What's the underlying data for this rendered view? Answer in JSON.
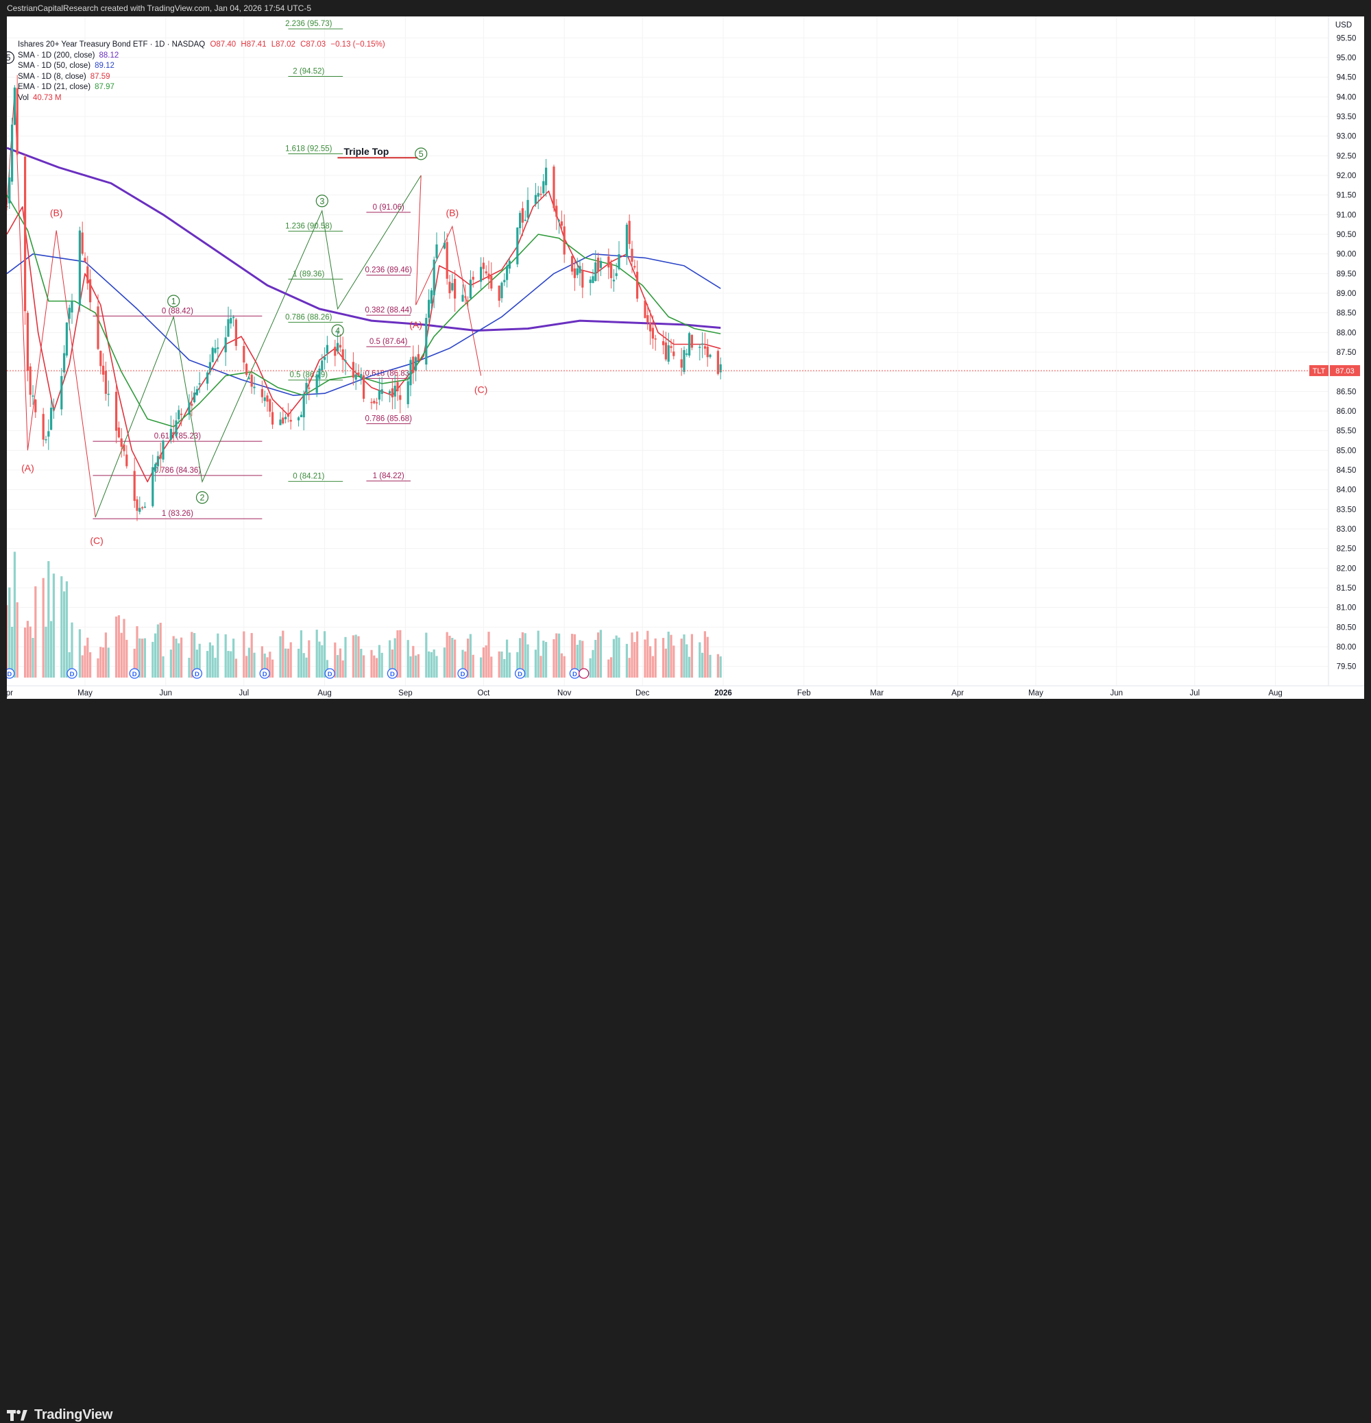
{
  "header": {
    "caption": "CestrianCapitalResearch created with TradingView.com, Jan 04, 2026 17:54 UTC-5"
  },
  "footer": {
    "brand": "TradingView"
  },
  "legend": {
    "symbol": "Ishares 20+ Year Treasury Bond ETF · 1D · NASDAQ",
    "ohlc": {
      "o": "O87.40",
      "h": "H87.41",
      "l": "L87.02",
      "c": "C87.03",
      "chg": "−0.13 (−0.15%)"
    },
    "indicators": [
      {
        "label": "SMA · 1D (200, close)",
        "value": "88.12",
        "color": "#6a2fc0"
      },
      {
        "label": "SMA · 1D (50, close)",
        "value": "89.12",
        "color": "#2b45c8"
      },
      {
        "label": "SMA · 1D (8, close)",
        "value": "87.59",
        "color": "#e0323c"
      },
      {
        "label": "EMA · 1D (21, close)",
        "value": "87.97",
        "color": "#2e9a3a"
      }
    ],
    "volume": {
      "label": "Vol",
      "value": "40.73 M"
    }
  },
  "colors": {
    "up": "#26a69a",
    "down": "#ef5350",
    "vol_up": "#8fd3cb",
    "vol_down": "#f5a3a1",
    "fib_green": "#3a8a3a",
    "fib_magenta": "#a0205a",
    "wave_green": "#2e7d32",
    "wave_red": "#e0323c",
    "sma200": "#6a2fc0",
    "sma50": "#2b45c8",
    "sma8": "#e0323c",
    "ema21": "#2e9a3a"
  },
  "chart_data": {
    "type": "candlestick",
    "title": "Ishares 20+ Year Treasury Bond ETF · 1D · NASDAQ",
    "currency": "USD",
    "ylim": [
      79.25,
      95.75
    ],
    "y_ticks": [
      "95.50",
      "95.00",
      "94.50",
      "94.00",
      "93.50",
      "93.00",
      "92.50",
      "92.00",
      "91.50",
      "91.00",
      "90.50",
      "90.00",
      "89.50",
      "89.00",
      "88.50",
      "88.00",
      "87.50",
      "87.00",
      "86.50",
      "86.00",
      "85.50",
      "85.00",
      "84.50",
      "84.00",
      "83.50",
      "83.00",
      "82.50",
      "82.00",
      "81.50",
      "81.00",
      "80.50",
      "80.00",
      "79.50"
    ],
    "x_ticks": [
      {
        "label": "Apr",
        "day": 0
      },
      {
        "label": "May",
        "day": 30
      },
      {
        "label": "Jun",
        "day": 61
      },
      {
        "label": "Jul",
        "day": 91
      },
      {
        "label": "Aug",
        "day": 122
      },
      {
        "label": "Sep",
        "day": 153
      },
      {
        "label": "Oct",
        "day": 183
      },
      {
        "label": "Nov",
        "day": 214
      },
      {
        "label": "Dec",
        "day": 244
      },
      {
        "label": "2026",
        "day": 275
      },
      {
        "label": "Feb",
        "day": 306
      },
      {
        "label": "Mar",
        "day": 334
      },
      {
        "label": "Apr",
        "day": 365
      },
      {
        "label": "May",
        "day": 395
      },
      {
        "label": "Jun",
        "day": 426
      },
      {
        "label": "Jul",
        "day": 456
      },
      {
        "label": "Aug",
        "day": 487
      }
    ],
    "last_price": {
      "symbol": "TLT",
      "value": "87.03"
    },
    "price_path": [
      [
        0,
        91.2
      ],
      [
        3,
        94.2
      ],
      [
        8,
        87.0
      ],
      [
        14,
        85.0
      ],
      [
        22,
        87.5
      ],
      [
        28,
        90.6
      ],
      [
        34,
        88.0
      ],
      [
        40,
        86.0
      ],
      [
        48,
        84.0
      ],
      [
        52,
        83.3
      ],
      [
        56,
        84.6
      ],
      [
        62,
        85.3
      ],
      [
        70,
        86.2
      ],
      [
        78,
        87.4
      ],
      [
        86,
        88.3
      ],
      [
        90,
        87.6
      ],
      [
        96,
        86.3
      ],
      [
        103,
        85.9
      ],
      [
        110,
        85.5
      ],
      [
        116,
        86.8
      ],
      [
        123,
        87.8
      ],
      [
        130,
        87.4
      ],
      [
        138,
        86.4
      ],
      [
        146,
        86.5
      ],
      [
        152,
        86.6
      ],
      [
        156,
        87.2
      ],
      [
        160,
        87.8
      ],
      [
        166,
        90.8
      ],
      [
        170,
        89.2
      ],
      [
        175,
        88.7
      ],
      [
        180,
        89.5
      ],
      [
        186,
        89.4
      ],
      [
        190,
        89.0
      ],
      [
        196,
        90.6
      ],
      [
        202,
        91.6
      ],
      [
        208,
        92.0
      ],
      [
        212,
        90.9
      ],
      [
        216,
        89.4
      ],
      [
        222,
        89.4
      ],
      [
        228,
        89.8
      ],
      [
        234,
        89.6
      ],
      [
        238,
        90.6
      ],
      [
        242,
        89.1
      ],
      [
        246,
        88.4
      ],
      [
        252,
        87.6
      ],
      [
        258,
        87.3
      ],
      [
        263,
        87.8
      ],
      [
        268,
        87.5
      ],
      [
        272,
        87.4
      ],
      [
        274,
        87.03
      ]
    ],
    "series": [
      {
        "name": "SMA · 1D (200, close)",
        "points": [
          [
            0,
            92.7
          ],
          [
            20,
            92.2
          ],
          [
            40,
            91.8
          ],
          [
            60,
            91.0
          ],
          [
            80,
            90.1
          ],
          [
            100,
            89.2
          ],
          [
            120,
            88.6
          ],
          [
            140,
            88.3
          ],
          [
            160,
            88.2
          ],
          [
            180,
            88.05
          ],
          [
            200,
            88.1
          ],
          [
            210,
            88.2
          ],
          [
            220,
            88.3
          ],
          [
            240,
            88.25
          ],
          [
            260,
            88.2
          ],
          [
            274,
            88.12
          ]
        ]
      },
      {
        "name": "SMA · 1D (50, close)",
        "points": [
          [
            0,
            89.5
          ],
          [
            10,
            90.0
          ],
          [
            30,
            89.8
          ],
          [
            50,
            88.6
          ],
          [
            70,
            87.3
          ],
          [
            90,
            86.8
          ],
          [
            110,
            86.4
          ],
          [
            122,
            86.45
          ],
          [
            140,
            86.9
          ],
          [
            155,
            87.2
          ],
          [
            170,
            87.6
          ],
          [
            190,
            88.4
          ],
          [
            210,
            89.5
          ],
          [
            225,
            90.0
          ],
          [
            245,
            89.9
          ],
          [
            260,
            89.7
          ],
          [
            274,
            89.12
          ]
        ]
      },
      {
        "name": "SMA · 1D (8, close)",
        "points": [
          [
            0,
            90.5
          ],
          [
            6,
            91.2
          ],
          [
            12,
            88.0
          ],
          [
            18,
            86.0
          ],
          [
            24,
            87.2
          ],
          [
            30,
            89.5
          ],
          [
            36,
            88.7
          ],
          [
            42,
            86.7
          ],
          [
            48,
            85.0
          ],
          [
            54,
            84.2
          ],
          [
            60,
            85.0
          ],
          [
            66,
            85.6
          ],
          [
            72,
            86.4
          ],
          [
            78,
            87.0
          ],
          [
            84,
            87.7
          ],
          [
            90,
            87.9
          ],
          [
            96,
            87.2
          ],
          [
            102,
            86.3
          ],
          [
            108,
            85.9
          ],
          [
            114,
            86.4
          ],
          [
            120,
            87.3
          ],
          [
            126,
            87.6
          ],
          [
            132,
            87.1
          ],
          [
            140,
            86.6
          ],
          [
            148,
            86.4
          ],
          [
            154,
            86.9
          ],
          [
            160,
            87.4
          ],
          [
            166,
            89.7
          ],
          [
            172,
            89.5
          ],
          [
            178,
            89.2
          ],
          [
            184,
            89.4
          ],
          [
            190,
            89.6
          ],
          [
            196,
            90.2
          ],
          [
            202,
            91.2
          ],
          [
            208,
            91.6
          ],
          [
            214,
            90.4
          ],
          [
            220,
            89.6
          ],
          [
            226,
            89.5
          ],
          [
            232,
            89.8
          ],
          [
            238,
            90.0
          ],
          [
            244,
            89.0
          ],
          [
            250,
            88.0
          ],
          [
            256,
            87.7
          ],
          [
            262,
            87.7
          ],
          [
            268,
            87.7
          ],
          [
            274,
            87.59
          ]
        ]
      },
      {
        "name": "EMA · 1D (21, close)",
        "points": [
          [
            0,
            91.5
          ],
          [
            8,
            90.6
          ],
          [
            16,
            88.8
          ],
          [
            26,
            88.8
          ],
          [
            34,
            88.5
          ],
          [
            44,
            87.0
          ],
          [
            54,
            85.8
          ],
          [
            64,
            85.6
          ],
          [
            74,
            86.2
          ],
          [
            84,
            86.9
          ],
          [
            94,
            87.0
          ],
          [
            104,
            86.6
          ],
          [
            114,
            86.4
          ],
          [
            124,
            86.8
          ],
          [
            134,
            86.9
          ],
          [
            144,
            86.7
          ],
          [
            154,
            86.8
          ],
          [
            164,
            87.9
          ],
          [
            174,
            88.6
          ],
          [
            184,
            89.2
          ],
          [
            194,
            89.8
          ],
          [
            204,
            90.5
          ],
          [
            212,
            90.4
          ],
          [
            222,
            89.9
          ],
          [
            234,
            89.7
          ],
          [
            244,
            89.2
          ],
          [
            254,
            88.4
          ],
          [
            264,
            88.1
          ],
          [
            274,
            87.97
          ]
        ]
      }
    ],
    "wave_labels": [
      {
        "text": "5",
        "day": 0.5,
        "price": 95.0,
        "circled": true,
        "color": "dark"
      },
      {
        "text": "(A)",
        "day": 8,
        "price": 84.55,
        "circled": false,
        "color": "red"
      },
      {
        "text": "(B)",
        "day": 19,
        "price": 91.05,
        "circled": false,
        "color": "red"
      },
      {
        "text": "(C)",
        "day": 34.5,
        "price": 82.7,
        "circled": false,
        "color": "red"
      },
      {
        "text": "1",
        "day": 64,
        "price": 88.8,
        "circled": true,
        "color": "green"
      },
      {
        "text": "2",
        "day": 75,
        "price": 83.8,
        "circled": true,
        "color": "green"
      },
      {
        "text": "3",
        "day": 121,
        "price": 91.35,
        "circled": true,
        "color": "green"
      },
      {
        "text": "4",
        "day": 127,
        "price": 88.05,
        "circled": true,
        "color": "green"
      },
      {
        "text": "5",
        "day": 159,
        "price": 92.55,
        "circled": true,
        "color": "green"
      },
      {
        "text": "(A)",
        "day": 157,
        "price": 88.2,
        "circled": false,
        "color": "red"
      },
      {
        "text": "(B)",
        "day": 171,
        "price": 91.05,
        "circled": false,
        "color": "red"
      },
      {
        "text": "(C)",
        "day": 182,
        "price": 86.55,
        "circled": false,
        "color": "red"
      }
    ],
    "annotations": [
      {
        "text": "Triple Top",
        "day": 138,
        "price": 92.45
      }
    ],
    "fib_sets": [
      {
        "color": "magenta",
        "start_day": 33,
        "end_day": 98,
        "levels": [
          {
            "label": "0 (88.42)",
            "price": 88.42
          },
          {
            "label": "0.618 (85.23)",
            "price": 85.23
          },
          {
            "label": "0.786 (84.36)",
            "price": 84.36
          },
          {
            "label": "1 (83.26)",
            "price": 83.26
          }
        ]
      },
      {
        "color": "green",
        "start_day": 108,
        "end_day": 129,
        "levels": [
          {
            "label": "2.236 (95.73)",
            "price": 95.73
          },
          {
            "label": "2 (94.52)",
            "price": 94.52
          },
          {
            "label": "1.618 (92.55)",
            "price": 92.55
          },
          {
            "label": "1.236 (90.58)",
            "price": 90.58
          },
          {
            "label": "1 (89.36)",
            "price": 89.36
          },
          {
            "label": "0.786 (88.26)",
            "price": 88.26
          },
          {
            "label": "0.5 (86.79)",
            "price": 86.79
          },
          {
            "label": "0 (84.21)",
            "price": 84.21
          }
        ]
      },
      {
        "color": "magenta",
        "start_day": 138,
        "end_day": 155,
        "levels": [
          {
            "label": "0 (91.06)",
            "price": 91.06
          },
          {
            "label": "0.236 (89.46)",
            "price": 89.46
          },
          {
            "label": "0.382 (88.44)",
            "price": 88.44
          },
          {
            "label": "0.5 (87.64)",
            "price": 87.64
          },
          {
            "label": "0.618 (86.83)",
            "price": 86.83
          },
          {
            "label": "0.786 (85.68)",
            "price": 85.68
          },
          {
            "label": "1 (84.22)",
            "price": 84.22
          }
        ]
      }
    ],
    "dividend_markers": [
      "D",
      "D",
      "D",
      "D",
      "D",
      "D",
      "D",
      "D",
      "D",
      "D"
    ]
  }
}
